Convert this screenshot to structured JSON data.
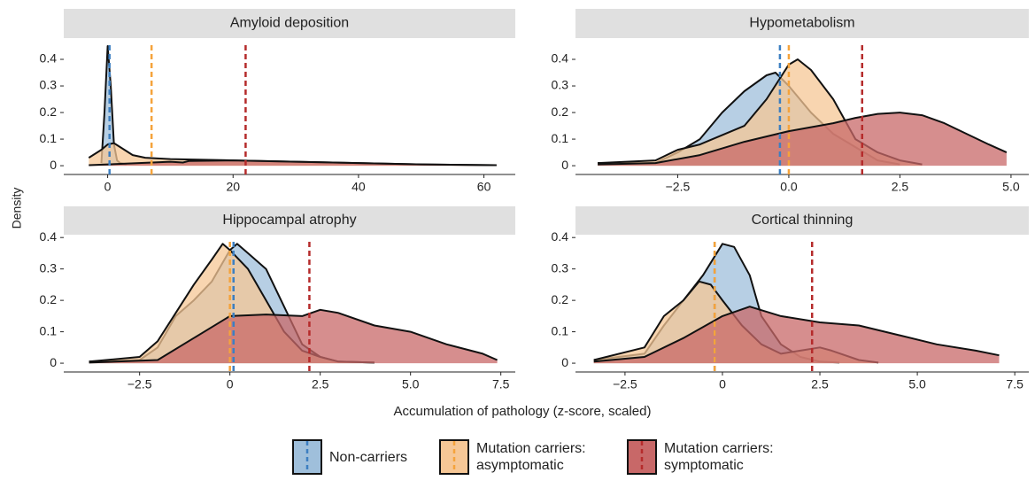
{
  "chart_data": [
    {
      "type": "density",
      "title": "Amyloid deposition",
      "xlim": [
        -7,
        65
      ],
      "xticks": [
        0,
        20,
        40,
        60
      ],
      "ylim": [
        -0.033,
        0.48
      ],
      "yticks": [
        0,
        0.1,
        0.2,
        0.3,
        0.4
      ],
      "series": [
        {
          "name": "Non-carriers",
          "color": "#9fbfdb",
          "line_color": "#3d7fc1",
          "x": [
            -1,
            -0.5,
            0,
            0.5,
            1,
            1.5,
            2,
            3
          ],
          "values": [
            0.01,
            0.2,
            0.45,
            0.3,
            0.08,
            0.02,
            0.01,
            0.005
          ],
          "vline": 0.3
        },
        {
          "name": "Mutation carriers: asymptomatic",
          "color": "#f6c796",
          "line_color": "#f5a33b",
          "x": [
            -3,
            -1,
            0,
            1,
            2,
            4,
            6,
            10,
            20,
            30,
            40,
            50,
            62
          ],
          "values": [
            0.03,
            0.06,
            0.08,
            0.085,
            0.07,
            0.04,
            0.03,
            0.025,
            0.02,
            0.015,
            0.01,
            0.005,
            0.002
          ],
          "vline": 7
        },
        {
          "name": "Mutation carriers: symptomatic",
          "color": "#c86868",
          "line_color": "#b52b2b",
          "x": [
            -3,
            0,
            5,
            10,
            12,
            13,
            20,
            30,
            40,
            50,
            62
          ],
          "values": [
            0.002,
            0.005,
            0.01,
            0.015,
            0.012,
            0.018,
            0.02,
            0.015,
            0.01,
            0.005,
            0.002
          ],
          "vline": 22
        }
      ]
    },
    {
      "type": "density",
      "title": "Hypometabolism",
      "xlim": [
        -4.8,
        5.4
      ],
      "xticks": [
        {
          "value": -2.5,
          "label": "−2.5"
        },
        {
          "value": 0,
          "label": "0.0"
        },
        {
          "value": 2.5,
          "label": "2.5"
        },
        {
          "value": 5,
          "label": "5.0"
        }
      ],
      "ylim": [
        -0.033,
        0.48
      ],
      "yticks": [
        0,
        0.1,
        0.2,
        0.3,
        0.4
      ],
      "series": [
        {
          "color": "#9fbfdb",
          "line_color": "#3d7fc1",
          "x": [
            -4.3,
            -3,
            -2.5,
            -2,
            -1.5,
            -1,
            -0.5,
            -0.3,
            0,
            0.5,
            1,
            1.5,
            2,
            2.5
          ],
          "values": [
            0.01,
            0.01,
            0.05,
            0.1,
            0.2,
            0.28,
            0.34,
            0.35,
            0.3,
            0.2,
            0.12,
            0.07,
            0.02,
            0.005
          ],
          "vline": -0.2
        },
        {
          "color": "#f6c796",
          "line_color": "#f5a33b",
          "x": [
            -4.3,
            -3,
            -2.5,
            -2,
            -1,
            -0.5,
            0,
            0.2,
            0.5,
            1,
            1.5,
            2,
            2.5,
            3
          ],
          "values": [
            0.01,
            0.02,
            0.06,
            0.08,
            0.15,
            0.25,
            0.38,
            0.4,
            0.36,
            0.25,
            0.1,
            0.05,
            0.02,
            0.005
          ],
          "vline": 0
        },
        {
          "color": "#c86868",
          "line_color": "#b52b2b",
          "x": [
            -4.3,
            -3,
            -2,
            -1,
            0,
            1,
            1.5,
            2,
            2.5,
            3,
            3.5,
            4,
            4.5,
            4.9
          ],
          "values": [
            0.005,
            0.01,
            0.04,
            0.09,
            0.13,
            0.16,
            0.18,
            0.195,
            0.2,
            0.19,
            0.16,
            0.12,
            0.08,
            0.05
          ],
          "vline": 1.65
        }
      ]
    },
    {
      "type": "density",
      "title": "Hippocampal atrophy",
      "xlim": [
        -4.6,
        7.9
      ],
      "xticks": [
        {
          "value": -2.5,
          "label": "−2.5"
        },
        {
          "value": 0,
          "label": "0"
        },
        {
          "value": 2.5,
          "label": "2.5"
        },
        {
          "value": 5,
          "label": "5.0"
        },
        {
          "value": 7.5,
          "label": "7.5"
        }
      ],
      "ylim": [
        -0.028,
        0.409
      ],
      "yticks": [
        0,
        0.1,
        0.2,
        0.3,
        0.4
      ],
      "series": [
        {
          "color": "#9fbfdb",
          "line_color": "#3d7fc1",
          "x": [
            -3.9,
            -2.5,
            -2,
            -1.5,
            -1,
            -0.5,
            0,
            0.2,
            0.5,
            1,
            1.5,
            2,
            2.5,
            3,
            4
          ],
          "values": [
            0.005,
            0.01,
            0.05,
            0.15,
            0.2,
            0.26,
            0.36,
            0.38,
            0.35,
            0.3,
            0.18,
            0.06,
            0.02,
            0.005,
            0.002
          ],
          "vline": 0.1
        },
        {
          "color": "#f6c796",
          "line_color": "#f5a33b",
          "x": [
            -3.9,
            -2.5,
            -2,
            -1.5,
            -1,
            -0.5,
            -0.2,
            0,
            0.5,
            1,
            1.5,
            2,
            2.5,
            3,
            4
          ],
          "values": [
            0.005,
            0.02,
            0.07,
            0.16,
            0.25,
            0.33,
            0.38,
            0.36,
            0.3,
            0.2,
            0.1,
            0.04,
            0.02,
            0.005,
            0.002
          ],
          "vline": 0
        },
        {
          "color": "#c86868",
          "line_color": "#b52b2b",
          "x": [
            -3.9,
            -2,
            -1,
            0,
            1,
            2,
            2.5,
            3,
            4,
            5,
            6,
            7,
            7.4
          ],
          "values": [
            0.002,
            0.01,
            0.08,
            0.15,
            0.155,
            0.15,
            0.17,
            0.16,
            0.12,
            0.1,
            0.06,
            0.03,
            0.01
          ],
          "vline": 2.2
        }
      ]
    },
    {
      "type": "density",
      "title": "Cortical thinning",
      "xlim": [
        -3.77,
        7.86
      ],
      "xticks": [
        {
          "value": -2.5,
          "label": "−2.5"
        },
        {
          "value": 0,
          "label": "0"
        },
        {
          "value": 2.5,
          "label": "2.5"
        },
        {
          "value": 5,
          "label": "5.0"
        },
        {
          "value": 7.5,
          "label": "7.5"
        }
      ],
      "ylim": [
        -0.028,
        0.409
      ],
      "yticks": [
        0,
        0.1,
        0.2,
        0.3,
        0.4
      ],
      "series": [
        {
          "color": "#9fbfdb",
          "line_color": "#3d7fc1",
          "x": [
            -3.3,
            -2,
            -1.5,
            -1,
            -0.5,
            0,
            0.3,
            0.7,
            1,
            1.5,
            2,
            2.5,
            3
          ],
          "values": [
            0.01,
            0.03,
            0.12,
            0.2,
            0.28,
            0.38,
            0.37,
            0.28,
            0.15,
            0.06,
            0.02,
            0.005,
            0.002
          ],
          "vline": -0.2
        },
        {
          "color": "#f6c796",
          "line_color": "#f5a33b",
          "x": [
            -3.3,
            -2,
            -1.5,
            -1,
            -0.6,
            -0.3,
            0,
            0.5,
            1,
            1.5,
            2,
            2.5,
            2.8,
            3.5,
            4
          ],
          "values": [
            0.01,
            0.05,
            0.15,
            0.2,
            0.26,
            0.25,
            0.2,
            0.12,
            0.06,
            0.03,
            0.04,
            0.05,
            0.04,
            0.01,
            0.002
          ],
          "vline": -0.2
        },
        {
          "color": "#c86868",
          "line_color": "#b52b2b",
          "x": [
            -3.3,
            -2,
            -1,
            0,
            0.7,
            1.5,
            2.5,
            3.5,
            4.5,
            5.5,
            6.5,
            7.1
          ],
          "values": [
            0.005,
            0.02,
            0.08,
            0.15,
            0.18,
            0.15,
            0.13,
            0.12,
            0.09,
            0.06,
            0.04,
            0.025
          ],
          "vline": 2.3
        }
      ]
    }
  ],
  "y_label": "Density",
  "x_label": "Accumulation of pathology (z-score, scaled)"
}
